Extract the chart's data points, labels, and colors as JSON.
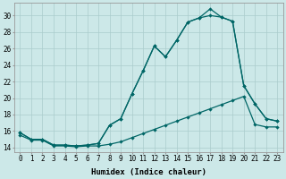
{
  "xlabel": "Humidex (Indice chaleur)",
  "background_color": "#cce8e8",
  "line_color": "#006666",
  "grid_color": "#aacccc",
  "xlim": [
    -0.5,
    23.5
  ],
  "ylim": [
    13.5,
    31.5
  ],
  "yticks": [
    14,
    16,
    18,
    20,
    22,
    24,
    26,
    28,
    30
  ],
  "xticks": [
    0,
    1,
    2,
    3,
    4,
    5,
    6,
    7,
    8,
    9,
    10,
    11,
    12,
    13,
    14,
    15,
    16,
    17,
    18,
    19,
    20,
    21,
    22,
    23
  ],
  "series1_x": [
    0,
    1,
    2,
    3,
    4,
    5,
    6,
    7,
    8,
    9,
    10,
    11,
    12,
    13,
    14,
    15,
    16,
    17,
    18,
    19,
    20,
    21,
    22,
    23
  ],
  "series1_y": [
    15.8,
    15.0,
    15.0,
    14.3,
    14.3,
    14.2,
    14.3,
    14.5,
    16.7,
    17.5,
    20.5,
    23.3,
    26.3,
    25.0,
    27.0,
    29.2,
    29.7,
    30.0,
    29.8,
    29.3,
    21.5,
    19.3,
    17.5,
    17.2
  ],
  "series2_x": [
    0,
    1,
    2,
    3,
    4,
    5,
    6,
    7,
    8,
    9,
    10,
    11,
    12,
    13,
    14,
    15,
    16,
    17,
    18,
    19,
    20,
    21,
    22,
    23
  ],
  "series2_y": [
    15.8,
    15.0,
    15.0,
    14.3,
    14.3,
    14.2,
    14.3,
    14.5,
    16.7,
    17.5,
    20.5,
    23.3,
    26.3,
    25.0,
    27.0,
    29.2,
    29.7,
    30.8,
    29.8,
    29.3,
    21.5,
    19.3,
    17.5,
    17.2
  ],
  "series3_x": [
    0,
    1,
    2,
    3,
    4,
    5,
    6,
    7,
    8,
    9,
    10,
    11,
    12,
    13,
    14,
    15,
    16,
    17,
    18,
    19,
    20,
    21,
    22,
    23
  ],
  "series3_y": [
    15.5,
    14.9,
    14.9,
    14.2,
    14.2,
    14.1,
    14.2,
    14.2,
    14.4,
    14.7,
    15.2,
    15.7,
    16.2,
    16.7,
    17.2,
    17.7,
    18.2,
    18.7,
    19.2,
    19.7,
    20.2,
    16.8,
    16.5,
    16.5
  ],
  "xlabel_fontsize": 6.5,
  "tick_fontsize": 5.5,
  "lw": 0.9,
  "ms": 2.2
}
